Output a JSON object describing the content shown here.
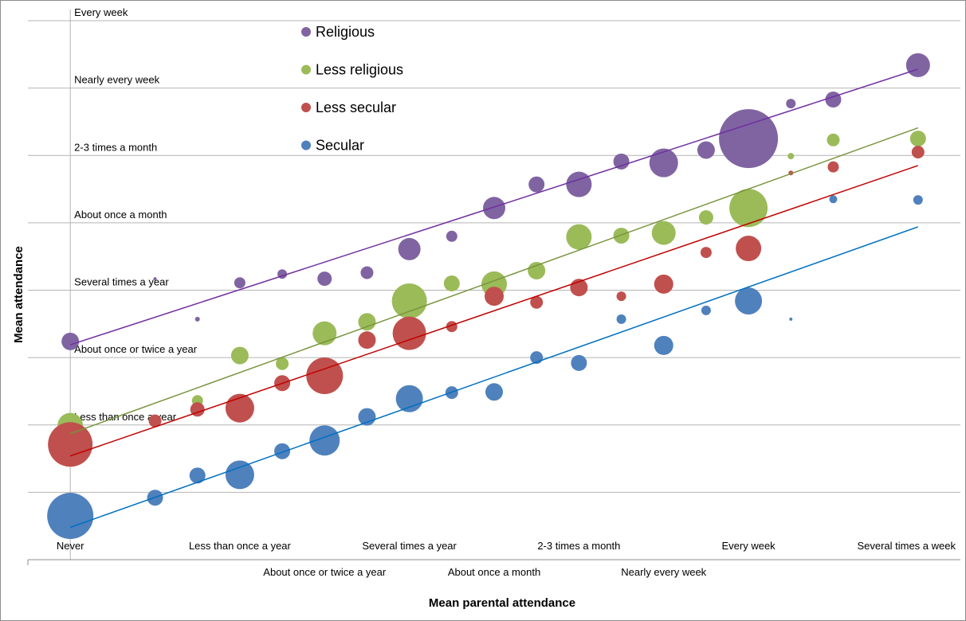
{
  "chart_data": {
    "type": "bubble",
    "x_label": "Mean parental attendance",
    "y_label": "Mean attendance",
    "xlim": [
      -0.5,
      10.5
    ],
    "ylim": [
      0,
      8
    ],
    "xticks": [
      {
        "value": 0,
        "label": "Never"
      },
      {
        "value": 2,
        "label": "Less than once a year"
      },
      {
        "value": 3,
        "label": "About once or twice a year"
      },
      {
        "value": 4,
        "label": "Several times a year"
      },
      {
        "value": 5,
        "label": "About once a month"
      },
      {
        "value": 6,
        "label": "2-3 times a month"
      },
      {
        "value": 7,
        "label": "Nearly every week"
      },
      {
        "value": 8,
        "label": "Every week"
      },
      {
        "value": 10,
        "label": "Several times a week"
      }
    ],
    "yticks": [
      {
        "value": 0,
        "label": null
      },
      {
        "value": 1,
        "label": null
      },
      {
        "value": 2,
        "label": "Less than once a year"
      },
      {
        "value": 3,
        "label": "About once or twice a year"
      },
      {
        "value": 4,
        "label": "Several times a year"
      },
      {
        "value": 5,
        "label": "About once a month"
      },
      {
        "value": 6,
        "label": "2-3 times a month"
      },
      {
        "value": 7,
        "label": "Nearly every week"
      },
      {
        "value": 8,
        "label": "Every week"
      }
    ],
    "grid": true,
    "series": [
      {
        "name": "Religious",
        "color": "#8064a2",
        "x": [
          0,
          1,
          1.5,
          2,
          2.5,
          3,
          3.5,
          4,
          4.5,
          5,
          5.5,
          6,
          6.5,
          7,
          7.5,
          8,
          8.5,
          9,
          10
        ],
        "y": [
          3.24,
          4.17,
          3.57,
          4.11,
          4.24,
          4.17,
          4.26,
          4.61,
          4.8,
          5.22,
          5.57,
          5.57,
          5.91,
          5.89,
          6.08,
          6.25,
          6.77,
          6.83,
          7.34
        ],
        "sizes": [
          11,
          2,
          3,
          7,
          6,
          9,
          8,
          14,
          7,
          14,
          10,
          16,
          10,
          18,
          11,
          37,
          6,
          10,
          15
        ],
        "trendline": {
          "color": "#7030a0",
          "x": [
            0,
            10
          ],
          "y": [
            3.19,
            7.28
          ]
        }
      },
      {
        "name": "Less religious",
        "color": "#9bbb59",
        "x": [
          0,
          1.5,
          2,
          2.5,
          3,
          3.5,
          4,
          4.5,
          5,
          5.5,
          6,
          6.5,
          7,
          7.5,
          8,
          8.5,
          9,
          10
        ],
        "y": [
          1.99,
          2.36,
          3.03,
          2.91,
          3.36,
          3.53,
          3.84,
          4.1,
          4.09,
          4.29,
          4.79,
          4.81,
          4.85,
          5.08,
          5.22,
          5.99,
          6.23,
          6.25
        ],
        "sizes": [
          16,
          7,
          11,
          8,
          15,
          11,
          22,
          10,
          16,
          11,
          16,
          10,
          15,
          9,
          24,
          4,
          8,
          10
        ],
        "trendline": {
          "color": "#77933c",
          "x": [
            0,
            10
          ],
          "y": [
            1.87,
            6.41
          ]
        }
      },
      {
        "name": "Less secular",
        "color": "#c0504d",
        "x": [
          0,
          1,
          1.5,
          2,
          2.5,
          3,
          3.5,
          4,
          4.5,
          5,
          5.5,
          6,
          6.5,
          7,
          7.5,
          8,
          8.5,
          9,
          10
        ],
        "y": [
          1.71,
          2.06,
          2.23,
          2.25,
          2.62,
          2.73,
          3.26,
          3.36,
          3.46,
          3.91,
          3.82,
          4.04,
          3.91,
          4.09,
          4.56,
          4.62,
          5.74,
          5.83,
          6.05
        ],
        "sizes": [
          28,
          8,
          9,
          18,
          10,
          23,
          11,
          21,
          7,
          12,
          8,
          11,
          6,
          12,
          7,
          16,
          3,
          7,
          8
        ],
        "trendline": {
          "color": "#c00000",
          "x": [
            0,
            10
          ],
          "y": [
            1.54,
            5.85
          ]
        }
      },
      {
        "name": "Secular",
        "color": "#4f81bd",
        "x": [
          0,
          1,
          1.5,
          2,
          2.5,
          3,
          3.5,
          4,
          4.5,
          5,
          5.5,
          6,
          6.5,
          7,
          7.5,
          8,
          8.5,
          9,
          10
        ],
        "y": [
          0.65,
          0.92,
          1.25,
          1.26,
          1.61,
          1.77,
          2.12,
          2.39,
          2.48,
          2.49,
          3.0,
          2.92,
          3.57,
          3.18,
          3.7,
          3.84,
          3.57,
          5.35,
          5.34
        ],
        "sizes": [
          29,
          10,
          10,
          18,
          10,
          19,
          11,
          17,
          8,
          11,
          8,
          10,
          6,
          12,
          6,
          17,
          2,
          5,
          6
        ],
        "trendline": {
          "color": "#0070c0",
          "x": [
            0,
            10
          ],
          "y": [
            0.48,
            4.94
          ]
        }
      }
    ]
  }
}
